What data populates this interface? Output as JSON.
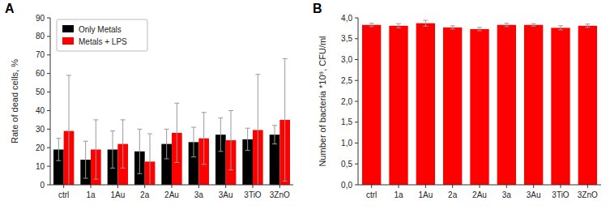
{
  "chart_data": [
    {
      "type": "bar",
      "categories": [
        "ctrl",
        "1a",
        "1Au",
        "2a",
        "2Au",
        "3a",
        "3Au",
        "3TiO",
        "3ZnO"
      ],
      "series": [
        {
          "name": "Only Metals",
          "color": "#000000",
          "values": [
            19,
            13.5,
            19,
            18,
            22,
            23,
            27,
            24.5,
            27
          ],
          "errors": [
            6,
            10,
            10,
            12,
            8,
            8,
            9,
            6,
            5
          ]
        },
        {
          "name": "Metals + LPS",
          "color": "#ff0000",
          "values": [
            29,
            19,
            22,
            12.5,
            28,
            25,
            24,
            29.5,
            35
          ],
          "errors": [
            30,
            16,
            13,
            15,
            16,
            14,
            16,
            30,
            33
          ]
        }
      ],
      "y_label": "Rate of dead cells, %",
      "ylim": [
        0,
        90
      ],
      "yticks": [
        0,
        10,
        20,
        30,
        40,
        50,
        60,
        70,
        80,
        90
      ],
      "legend": "upper left",
      "grid": false,
      "annotations": [
        "A"
      ]
    },
    {
      "type": "bar",
      "categories": [
        "ctrl",
        "1a",
        "1Au",
        "2a",
        "2Au",
        "3a",
        "3Au",
        "3TiO",
        "3ZnO"
      ],
      "values": [
        3.83,
        3.81,
        3.87,
        3.77,
        3.73,
        3.83,
        3.83,
        3.76,
        3.81
      ],
      "errors": [
        0.04,
        0.05,
        0.07,
        0.04,
        0.04,
        0.04,
        0.03,
        0.05,
        0.04
      ],
      "color": "#ff0000",
      "y_label": "Number of bacteria *10⁸, CFU/ml",
      "ylim": [
        0.0,
        4.0
      ],
      "yticks": [
        {
          "value": 0.0,
          "label": "0,0"
        },
        {
          "value": 0.5,
          "label": "0,5"
        },
        {
          "value": 1.0,
          "label": "1,0"
        },
        {
          "value": 1.5,
          "label": "1,5"
        },
        {
          "value": 2.0,
          "label": "2,0"
        },
        {
          "value": 2.5,
          "label": "2,5"
        },
        {
          "value": 3.0,
          "label": "3,0"
        },
        {
          "value": 3.5,
          "label": "3,5"
        },
        {
          "value": 4.0,
          "label": "4,0"
        }
      ],
      "grid": false,
      "annotations": [
        "B"
      ]
    }
  ]
}
